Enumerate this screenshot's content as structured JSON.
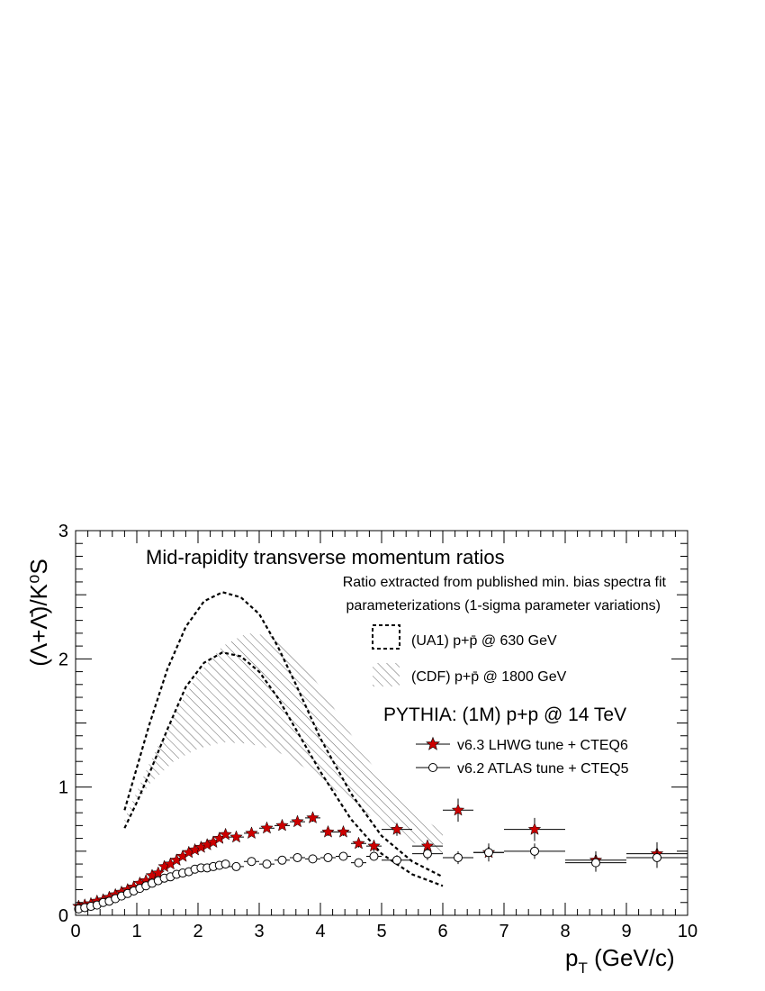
{
  "chart_data": {
    "type": "scatter",
    "title": "Mid-rapidity transverse momentum ratios",
    "subtitle_lines": [
      "Ratio extracted from published min. bias spectra fit",
      "parameterizations (1-sigma parameter variations)"
    ],
    "xlabel_main": "p",
    "xlabel_sub": "T",
    "xlabel_unit": " (GeV/c)",
    "ylabel": "(Λ+Λ̄)/K⁰S",
    "xlim": [
      0,
      10
    ],
    "ylim": [
      0,
      3
    ],
    "x_ticks": [
      0,
      1,
      2,
      3,
      4,
      5,
      6,
      7,
      8,
      9,
      10
    ],
    "y_ticks": [
      0,
      1,
      2,
      3
    ],
    "grid": false,
    "legend_position": "top-right",
    "legend": {
      "ua1_label": "(UA1) p+p̄ @ 630 GeV",
      "cdf_label": "(CDF) p+p̄ @ 1800 GeV",
      "pythia_header": "PYTHIA: (1M) p+p @ 14 TeV",
      "v63_label": "v6.3 LHWG tune + CTEQ6",
      "v62_label": "v6.2 ATLAS tune + CTEQ5"
    },
    "colors": {
      "v63": "#cc0000",
      "v62": "#ffffff",
      "axis": "#000000"
    },
    "bands": {
      "ua1": {
        "upper": [
          [
            0.8,
            0.82
          ],
          [
            1.0,
            1.15
          ],
          [
            1.2,
            1.48
          ],
          [
            1.5,
            1.92
          ],
          [
            1.8,
            2.25
          ],
          [
            2.1,
            2.45
          ],
          [
            2.4,
            2.52
          ],
          [
            2.7,
            2.48
          ],
          [
            3.0,
            2.35
          ],
          [
            3.3,
            2.1
          ],
          [
            3.6,
            1.8
          ],
          [
            4.0,
            1.38
          ],
          [
            4.5,
            0.95
          ],
          [
            5.0,
            0.62
          ],
          [
            5.5,
            0.42
          ],
          [
            6.0,
            0.3
          ]
        ],
        "lower": [
          [
            0.8,
            0.68
          ],
          [
            1.0,
            0.88
          ],
          [
            1.2,
            1.1
          ],
          [
            1.5,
            1.45
          ],
          [
            1.8,
            1.78
          ],
          [
            2.1,
            1.97
          ],
          [
            2.4,
            2.05
          ],
          [
            2.7,
            2.02
          ],
          [
            3.0,
            1.9
          ],
          [
            3.3,
            1.7
          ],
          [
            3.6,
            1.45
          ],
          [
            4.0,
            1.12
          ],
          [
            4.5,
            0.75
          ],
          [
            5.0,
            0.48
          ],
          [
            5.5,
            0.32
          ],
          [
            6.0,
            0.23
          ]
        ]
      },
      "cdf": {
        "upper": [
          [
            0.8,
            0.75
          ],
          [
            1.2,
            1.18
          ],
          [
            1.6,
            1.56
          ],
          [
            2.0,
            1.88
          ],
          [
            2.4,
            2.1
          ],
          [
            2.8,
            2.2
          ],
          [
            3.2,
            2.18
          ],
          [
            3.6,
            2.02
          ],
          [
            4.0,
            1.78
          ],
          [
            4.4,
            1.48
          ],
          [
            4.8,
            1.2
          ],
          [
            5.2,
            0.95
          ],
          [
            5.6,
            0.78
          ],
          [
            6.0,
            0.65
          ]
        ],
        "lower": [
          [
            0.8,
            0.72
          ],
          [
            1.2,
            1.02
          ],
          [
            1.6,
            1.2
          ],
          [
            2.0,
            1.3
          ],
          [
            2.4,
            1.35
          ],
          [
            2.8,
            1.34
          ],
          [
            3.2,
            1.3
          ],
          [
            3.6,
            1.2
          ],
          [
            4.0,
            1.06
          ],
          [
            4.4,
            0.92
          ],
          [
            4.8,
            0.78
          ],
          [
            5.2,
            0.65
          ],
          [
            5.6,
            0.55
          ],
          [
            6.0,
            0.46
          ]
        ]
      }
    },
    "series": [
      {
        "name": "v6.3 LHWG tune + CTEQ6",
        "marker": "star",
        "points": [
          {
            "x": 0.05,
            "y": 0.07,
            "xerr": 0.05,
            "yerr": 0.01
          },
          {
            "x": 0.15,
            "y": 0.08,
            "xerr": 0.05,
            "yerr": 0.01
          },
          {
            "x": 0.25,
            "y": 0.09,
            "xerr": 0.05,
            "yerr": 0.01
          },
          {
            "x": 0.35,
            "y": 0.11,
            "xerr": 0.05,
            "yerr": 0.01
          },
          {
            "x": 0.45,
            "y": 0.12,
            "xerr": 0.05,
            "yerr": 0.01
          },
          {
            "x": 0.55,
            "y": 0.14,
            "xerr": 0.05,
            "yerr": 0.01
          },
          {
            "x": 0.65,
            "y": 0.16,
            "xerr": 0.05,
            "yerr": 0.01
          },
          {
            "x": 0.75,
            "y": 0.18,
            "xerr": 0.05,
            "yerr": 0.01
          },
          {
            "x": 0.85,
            "y": 0.2,
            "xerr": 0.05,
            "yerr": 0.01
          },
          {
            "x": 0.95,
            "y": 0.22,
            "xerr": 0.05,
            "yerr": 0.01
          },
          {
            "x": 1.05,
            "y": 0.25,
            "xerr": 0.05,
            "yerr": 0.01
          },
          {
            "x": 1.15,
            "y": 0.27,
            "xerr": 0.05,
            "yerr": 0.01
          },
          {
            "x": 1.25,
            "y": 0.31,
            "xerr": 0.05,
            "yerr": 0.01
          },
          {
            "x": 1.35,
            "y": 0.33,
            "xerr": 0.05,
            "yerr": 0.01
          },
          {
            "x": 1.45,
            "y": 0.38,
            "xerr": 0.05,
            "yerr": 0.01
          },
          {
            "x": 1.55,
            "y": 0.4,
            "xerr": 0.05,
            "yerr": 0.01
          },
          {
            "x": 1.65,
            "y": 0.43,
            "xerr": 0.05,
            "yerr": 0.01
          },
          {
            "x": 1.75,
            "y": 0.46,
            "xerr": 0.05,
            "yerr": 0.01
          },
          {
            "x": 1.85,
            "y": 0.49,
            "xerr": 0.05,
            "yerr": 0.01
          },
          {
            "x": 1.95,
            "y": 0.51,
            "xerr": 0.05,
            "yerr": 0.01
          },
          {
            "x": 2.05,
            "y": 0.53,
            "xerr": 0.05,
            "yerr": 0.01
          },
          {
            "x": 2.15,
            "y": 0.55,
            "xerr": 0.05,
            "yerr": 0.01
          },
          {
            "x": 2.25,
            "y": 0.57,
            "xerr": 0.05,
            "yerr": 0.01
          },
          {
            "x": 2.35,
            "y": 0.6,
            "xerr": 0.05,
            "yerr": 0.01
          },
          {
            "x": 2.45,
            "y": 0.63,
            "xerr": 0.05,
            "yerr": 0.01
          },
          {
            "x": 2.625,
            "y": 0.61,
            "xerr": 0.125,
            "yerr": 0.02
          },
          {
            "x": 2.875,
            "y": 0.64,
            "xerr": 0.125,
            "yerr": 0.02
          },
          {
            "x": 3.125,
            "y": 0.68,
            "xerr": 0.125,
            "yerr": 0.02
          },
          {
            "x": 3.375,
            "y": 0.7,
            "xerr": 0.125,
            "yerr": 0.02
          },
          {
            "x": 3.625,
            "y": 0.73,
            "xerr": 0.125,
            "yerr": 0.02
          },
          {
            "x": 3.875,
            "y": 0.76,
            "xerr": 0.125,
            "yerr": 0.03
          },
          {
            "x": 4.125,
            "y": 0.65,
            "xerr": 0.125,
            "yerr": 0.03
          },
          {
            "x": 4.375,
            "y": 0.65,
            "xerr": 0.125,
            "yerr": 0.03
          },
          {
            "x": 4.625,
            "y": 0.56,
            "xerr": 0.125,
            "yerr": 0.03
          },
          {
            "x": 4.875,
            "y": 0.54,
            "xerr": 0.125,
            "yerr": 0.04
          },
          {
            "x": 5.25,
            "y": 0.67,
            "xerr": 0.25,
            "yerr": 0.05
          },
          {
            "x": 5.75,
            "y": 0.54,
            "xerr": 0.25,
            "yerr": 0.05
          },
          {
            "x": 6.25,
            "y": 0.82,
            "xerr": 0.25,
            "yerr": 0.09
          },
          {
            "x": 6.75,
            "y": 0.49,
            "xerr": 0.25,
            "yerr": 0.07
          },
          {
            "x": 7.5,
            "y": 0.67,
            "xerr": 0.5,
            "yerr": 0.09
          },
          {
            "x": 8.5,
            "y": 0.43,
            "xerr": 0.5,
            "yerr": 0.07
          },
          {
            "x": 9.5,
            "y": 0.48,
            "xerr": 0.5,
            "yerr": 0.09
          }
        ]
      },
      {
        "name": "v6.2 ATLAS tune + CTEQ5",
        "marker": "open-circle",
        "points": [
          {
            "x": 0.05,
            "y": 0.05,
            "xerr": 0.05,
            "yerr": 0.01
          },
          {
            "x": 0.15,
            "y": 0.06,
            "xerr": 0.05,
            "yerr": 0.01
          },
          {
            "x": 0.25,
            "y": 0.07,
            "xerr": 0.05,
            "yerr": 0.01
          },
          {
            "x": 0.35,
            "y": 0.08,
            "xerr": 0.05,
            "yerr": 0.01
          },
          {
            "x": 0.45,
            "y": 0.1,
            "xerr": 0.05,
            "yerr": 0.01
          },
          {
            "x": 0.55,
            "y": 0.11,
            "xerr": 0.05,
            "yerr": 0.01
          },
          {
            "x": 0.65,
            "y": 0.13,
            "xerr": 0.05,
            "yerr": 0.01
          },
          {
            "x": 0.75,
            "y": 0.15,
            "xerr": 0.05,
            "yerr": 0.01
          },
          {
            "x": 0.85,
            "y": 0.17,
            "xerr": 0.05,
            "yerr": 0.01
          },
          {
            "x": 0.95,
            "y": 0.19,
            "xerr": 0.05,
            "yerr": 0.01
          },
          {
            "x": 1.05,
            "y": 0.21,
            "xerr": 0.05,
            "yerr": 0.01
          },
          {
            "x": 1.15,
            "y": 0.23,
            "xerr": 0.05,
            "yerr": 0.01
          },
          {
            "x": 1.25,
            "y": 0.25,
            "xerr": 0.05,
            "yerr": 0.01
          },
          {
            "x": 1.35,
            "y": 0.27,
            "xerr": 0.05,
            "yerr": 0.01
          },
          {
            "x": 1.45,
            "y": 0.29,
            "xerr": 0.05,
            "yerr": 0.01
          },
          {
            "x": 1.55,
            "y": 0.3,
            "xerr": 0.05,
            "yerr": 0.01
          },
          {
            "x": 1.65,
            "y": 0.32,
            "xerr": 0.05,
            "yerr": 0.01
          },
          {
            "x": 1.75,
            "y": 0.33,
            "xerr": 0.05,
            "yerr": 0.01
          },
          {
            "x": 1.85,
            "y": 0.34,
            "xerr": 0.05,
            "yerr": 0.01
          },
          {
            "x": 1.95,
            "y": 0.36,
            "xerr": 0.05,
            "yerr": 0.01
          },
          {
            "x": 2.05,
            "y": 0.37,
            "xerr": 0.05,
            "yerr": 0.01
          },
          {
            "x": 2.15,
            "y": 0.37,
            "xerr": 0.05,
            "yerr": 0.01
          },
          {
            "x": 2.25,
            "y": 0.38,
            "xerr": 0.05,
            "yerr": 0.01
          },
          {
            "x": 2.35,
            "y": 0.39,
            "xerr": 0.05,
            "yerr": 0.01
          },
          {
            "x": 2.45,
            "y": 0.4,
            "xerr": 0.05,
            "yerr": 0.01
          },
          {
            "x": 2.625,
            "y": 0.38,
            "xerr": 0.125,
            "yerr": 0.02
          },
          {
            "x": 2.875,
            "y": 0.42,
            "xerr": 0.125,
            "yerr": 0.02
          },
          {
            "x": 3.125,
            "y": 0.4,
            "xerr": 0.125,
            "yerr": 0.02
          },
          {
            "x": 3.375,
            "y": 0.43,
            "xerr": 0.125,
            "yerr": 0.02
          },
          {
            "x": 3.625,
            "y": 0.45,
            "xerr": 0.125,
            "yerr": 0.02
          },
          {
            "x": 3.875,
            "y": 0.44,
            "xerr": 0.125,
            "yerr": 0.02
          },
          {
            "x": 4.125,
            "y": 0.45,
            "xerr": 0.125,
            "yerr": 0.02
          },
          {
            "x": 4.375,
            "y": 0.46,
            "xerr": 0.125,
            "yerr": 0.03
          },
          {
            "x": 4.625,
            "y": 0.41,
            "xerr": 0.125,
            "yerr": 0.03
          },
          {
            "x": 4.875,
            "y": 0.46,
            "xerr": 0.125,
            "yerr": 0.03
          },
          {
            "x": 5.25,
            "y": 0.43,
            "xerr": 0.25,
            "yerr": 0.04
          },
          {
            "x": 5.75,
            "y": 0.48,
            "xerr": 0.25,
            "yerr": 0.05
          },
          {
            "x": 6.25,
            "y": 0.45,
            "xerr": 0.25,
            "yerr": 0.05
          },
          {
            "x": 6.75,
            "y": 0.49,
            "xerr": 0.25,
            "yerr": 0.06
          },
          {
            "x": 7.5,
            "y": 0.5,
            "xerr": 0.5,
            "yerr": 0.06
          },
          {
            "x": 8.5,
            "y": 0.41,
            "xerr": 0.5,
            "yerr": 0.07
          },
          {
            "x": 9.5,
            "y": 0.45,
            "xerr": 0.5,
            "yerr": 0.08
          }
        ]
      }
    ]
  }
}
